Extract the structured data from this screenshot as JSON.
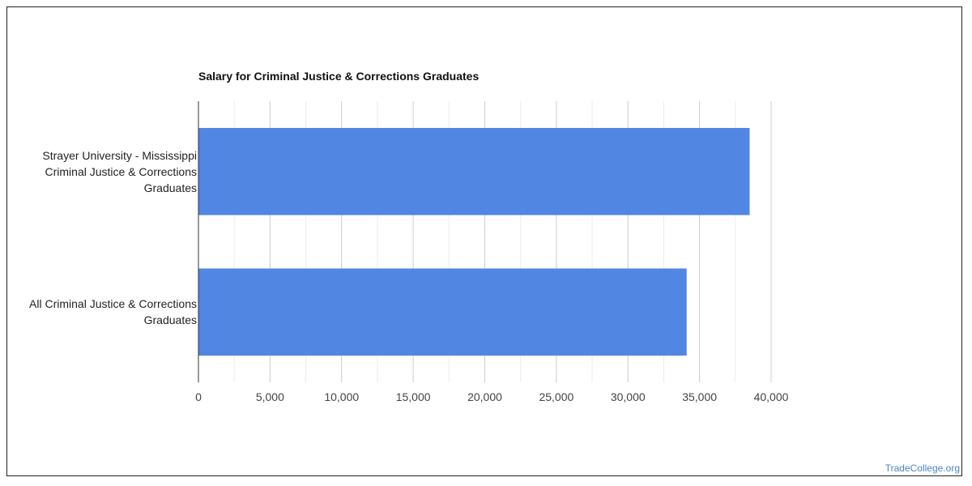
{
  "chart_data": {
    "type": "bar",
    "orientation": "horizontal",
    "title": "Salary for Criminal Justice & Corrections Graduates",
    "categories": [
      "Strayer University - Mississippi Criminal Justice & Corrections Graduates",
      "All Criminal Justice & Corrections Graduates"
    ],
    "category_lines": [
      [
        "Strayer University - Mississippi",
        "Criminal Justice & Corrections",
        "Graduates"
      ],
      [
        "All Criminal Justice & Corrections",
        "Graduates"
      ]
    ],
    "values": [
      38500,
      34100
    ],
    "xlim": [
      0,
      40000
    ],
    "xticks": [
      0,
      5000,
      10000,
      15000,
      20000,
      25000,
      30000,
      35000,
      40000
    ],
    "xtick_labels": [
      "0",
      "5,000",
      "10,000",
      "15,000",
      "20,000",
      "25,000",
      "30,000",
      "35,000",
      "40,000"
    ],
    "minor_gridlines": true,
    "bar_color": "#5286e3",
    "legend": "none"
  },
  "watermark": {
    "text": "TradeCollege.org",
    "color": "#4a86c8"
  }
}
